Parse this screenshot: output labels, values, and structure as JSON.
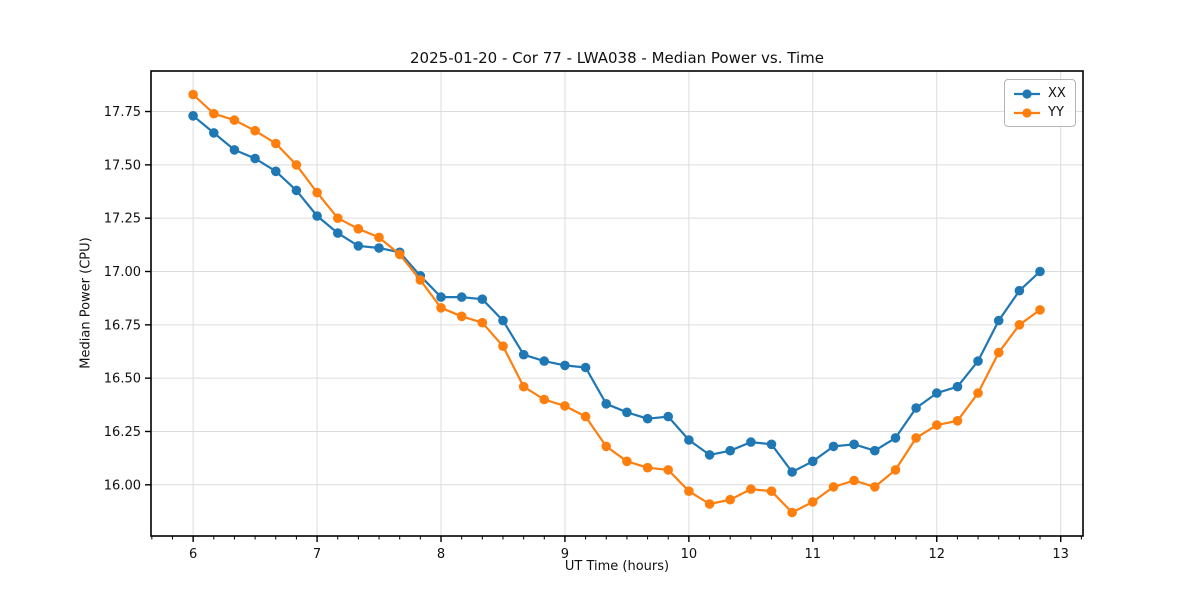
{
  "chart_data": {
    "type": "line",
    "title": "2025-01-20 - Cor 77 - LWA038 - Median Power vs. Time",
    "xlabel": "UT Time (hours)",
    "ylabel": "Median Power (CPU)",
    "x": [
      6.0,
      6.167,
      6.333,
      6.5,
      6.667,
      6.833,
      7.0,
      7.167,
      7.333,
      7.5,
      7.667,
      7.833,
      8.0,
      8.167,
      8.333,
      8.5,
      8.667,
      8.833,
      9.0,
      9.167,
      9.333,
      9.5,
      9.667,
      9.833,
      10.0,
      10.167,
      10.333,
      10.5,
      10.667,
      10.833,
      11.0,
      11.167,
      11.333,
      11.5,
      11.667,
      11.833,
      12.0,
      12.167,
      12.333,
      12.5,
      12.667,
      12.833
    ],
    "series": [
      {
        "name": "XX",
        "color": "#1f77b4",
        "values": [
          17.73,
          17.65,
          17.57,
          17.53,
          17.47,
          17.38,
          17.26,
          17.18,
          17.12,
          17.11,
          17.09,
          16.98,
          16.88,
          16.88,
          16.87,
          16.77,
          16.61,
          16.58,
          16.56,
          16.55,
          16.38,
          16.34,
          16.31,
          16.32,
          16.21,
          16.14,
          16.16,
          16.2,
          16.19,
          16.06,
          16.11,
          16.18,
          16.19,
          16.16,
          16.22,
          16.36,
          16.43,
          16.46,
          16.58,
          16.77,
          16.91,
          17.0
        ]
      },
      {
        "name": "YY",
        "color": "#ff7f0e",
        "values": [
          17.83,
          17.74,
          17.71,
          17.66,
          17.6,
          17.5,
          17.37,
          17.25,
          17.2,
          17.16,
          17.08,
          16.96,
          16.83,
          16.79,
          16.76,
          16.65,
          16.46,
          16.4,
          16.37,
          16.32,
          16.18,
          16.11,
          16.08,
          16.07,
          15.97,
          15.91,
          15.93,
          15.98,
          15.97,
          15.87,
          15.92,
          15.99,
          16.02,
          15.99,
          16.07,
          16.22,
          16.28,
          16.3,
          16.43,
          16.62,
          16.75,
          16.82
        ]
      }
    ],
    "xlim": [
      5.66,
      13.18
    ],
    "ylim": [
      15.76,
      17.94
    ],
    "x_ticks": [
      6,
      7,
      8,
      9,
      10,
      11,
      12,
      13
    ],
    "y_ticks": [
      16.0,
      16.25,
      16.5,
      16.75,
      17.0,
      17.25,
      17.5,
      17.75
    ],
    "x_minor_step": 0.166667,
    "grid": true,
    "legend_position": "upper right",
    "grid_color": "#dcdcdc",
    "spine_color": "#000000"
  }
}
